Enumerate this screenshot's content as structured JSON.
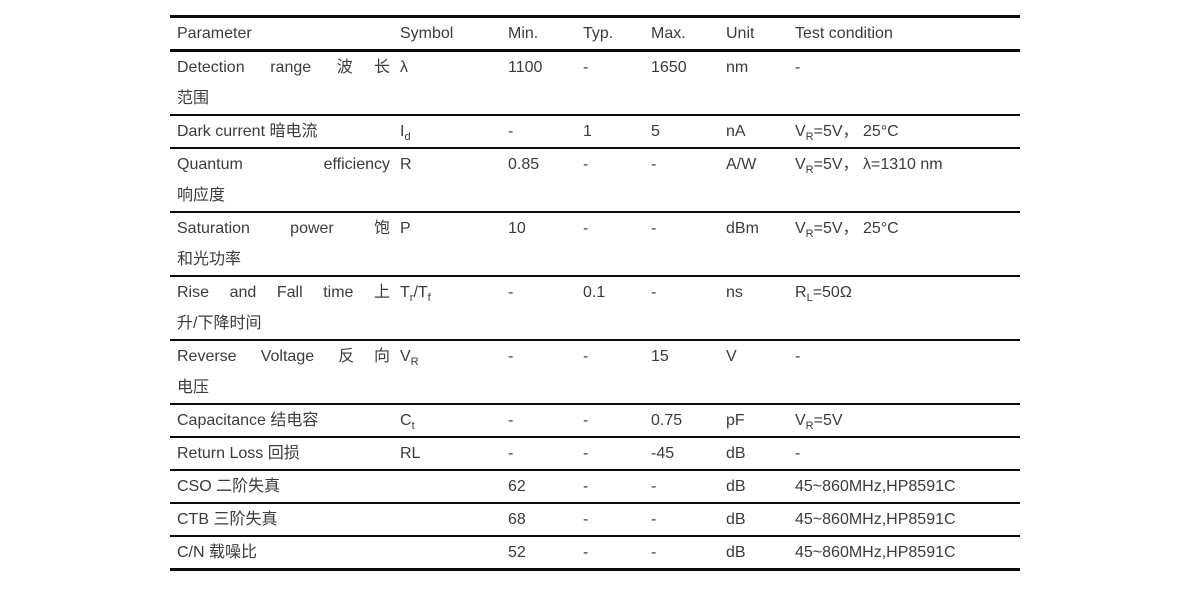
{
  "table": {
    "columns": [
      "Parameter",
      "Symbol",
      "Min.",
      "Typ.",
      "Max.",
      "Unit",
      "Test condition"
    ],
    "rows": [
      {
        "param_lines": [
          "Detection range 波长",
          "范围"
        ],
        "symbol": "λ",
        "min": "1100",
        "typ": "-",
        "max": "1650",
        "unit": "nm",
        "test": "-"
      },
      {
        "param_lines": [
          "Dark current 暗电流"
        ],
        "symbol": "I_{d}",
        "min": "-",
        "typ": "1",
        "max": "5",
        "unit": "nA",
        "test": "V_{R}=5V， 25°C"
      },
      {
        "param_lines": [
          "Quantum efficiency",
          "响应度"
        ],
        "symbol": "R",
        "min": "0.85",
        "typ": "-",
        "max": "-",
        "unit": "A/W",
        "test": "V_{R}=5V， λ=1310 nm"
      },
      {
        "param_lines": [
          "Saturation power 饱",
          "和光功率"
        ],
        "symbol": "P",
        "min": "10",
        "typ": "-",
        "max": "-",
        "unit": "dBm",
        "test": "V_{R}=5V， 25°C"
      },
      {
        "param_lines": [
          "Rise and Fall time 上",
          "升/下降时间"
        ],
        "symbol": "T_{r}/T_{f}",
        "min": "-",
        "typ": "0.1",
        "max": "-",
        "unit": "ns",
        "test": "R_{L}=50Ω"
      },
      {
        "param_lines": [
          "Reverse Voltage 反向",
          "电压"
        ],
        "symbol": "V_{R}",
        "min": "-",
        "typ": "-",
        "max": "15",
        "unit": "V",
        "test": "-"
      },
      {
        "param_lines": [
          "Capacitance 结电容"
        ],
        "symbol": "C_{t}",
        "min": "-",
        "typ": "-",
        "max": "0.75",
        "unit": "pF",
        "test": "V_{R}=5V"
      },
      {
        "param_lines": [
          "Return Loss 回损"
        ],
        "symbol": "RL",
        "min": "-",
        "typ": "-",
        "max": "-45",
        "unit": "dB",
        "test": "-"
      },
      {
        "param_lines": [
          "CSO 二阶失真"
        ],
        "symbol": "",
        "min": "62",
        "typ": "-",
        "max": "-",
        "unit": "dB",
        "test": "45~860MHz,HP8591C"
      },
      {
        "param_lines": [
          "CTB 三阶失真"
        ],
        "symbol": "",
        "min": "68",
        "typ": "-",
        "max": "-",
        "unit": "dB",
        "test": "45~860MHz,HP8591C"
      },
      {
        "param_lines": [
          "C/N 载噪比"
        ],
        "symbol": "",
        "min": "52",
        "typ": "-",
        "max": "-",
        "unit": "dB",
        "test": "45~860MHz,HP8591C"
      }
    ]
  }
}
